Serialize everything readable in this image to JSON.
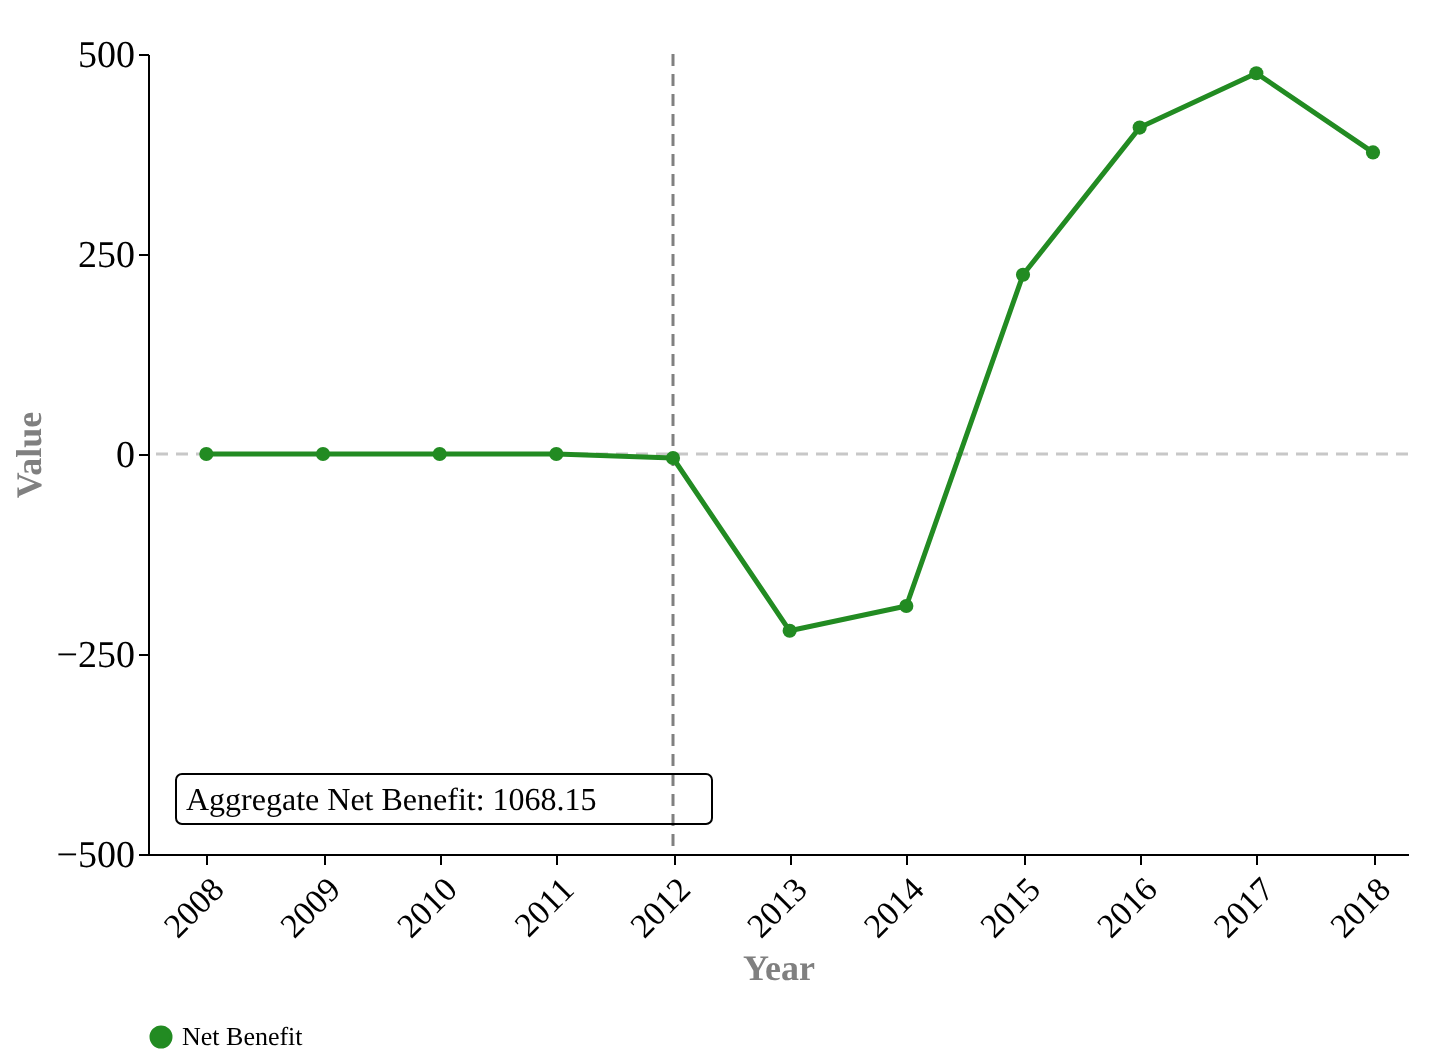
{
  "chart_data": {
    "type": "line",
    "xlabel": "Year",
    "ylabel": "Value",
    "x": [
      2008,
      2009,
      2010,
      2011,
      2012,
      2013,
      2014,
      2015,
      2016,
      2017,
      2018
    ],
    "series": [
      {
        "name": "Net Benefit",
        "color": "#228b22",
        "values": [
          0,
          0,
          0,
          0,
          -5,
          -221,
          -190,
          224,
          408,
          476,
          377
        ]
      }
    ],
    "xlim": [
      2007.5,
      2018.3
    ],
    "xticks": [
      2008,
      2009,
      2010,
      2011,
      2012,
      2013,
      2014,
      2015,
      2016,
      2017,
      2018
    ],
    "ylim": [
      -500,
      500
    ],
    "yticks": [
      -500,
      -250,
      0,
      250,
      500
    ],
    "ref_lines": [
      {
        "axis": "x",
        "value": 2012,
        "color": "#808080",
        "line_style": "dashed"
      },
      {
        "axis": "y",
        "value": 0,
        "color": "#c8c8c8",
        "line_style": "dashed"
      }
    ],
    "annotations": [
      "Aggregate Net Benefit: 1068.15"
    ],
    "marker": "circle",
    "line_style": "solid",
    "legend": "bottom",
    "grid": false
  }
}
